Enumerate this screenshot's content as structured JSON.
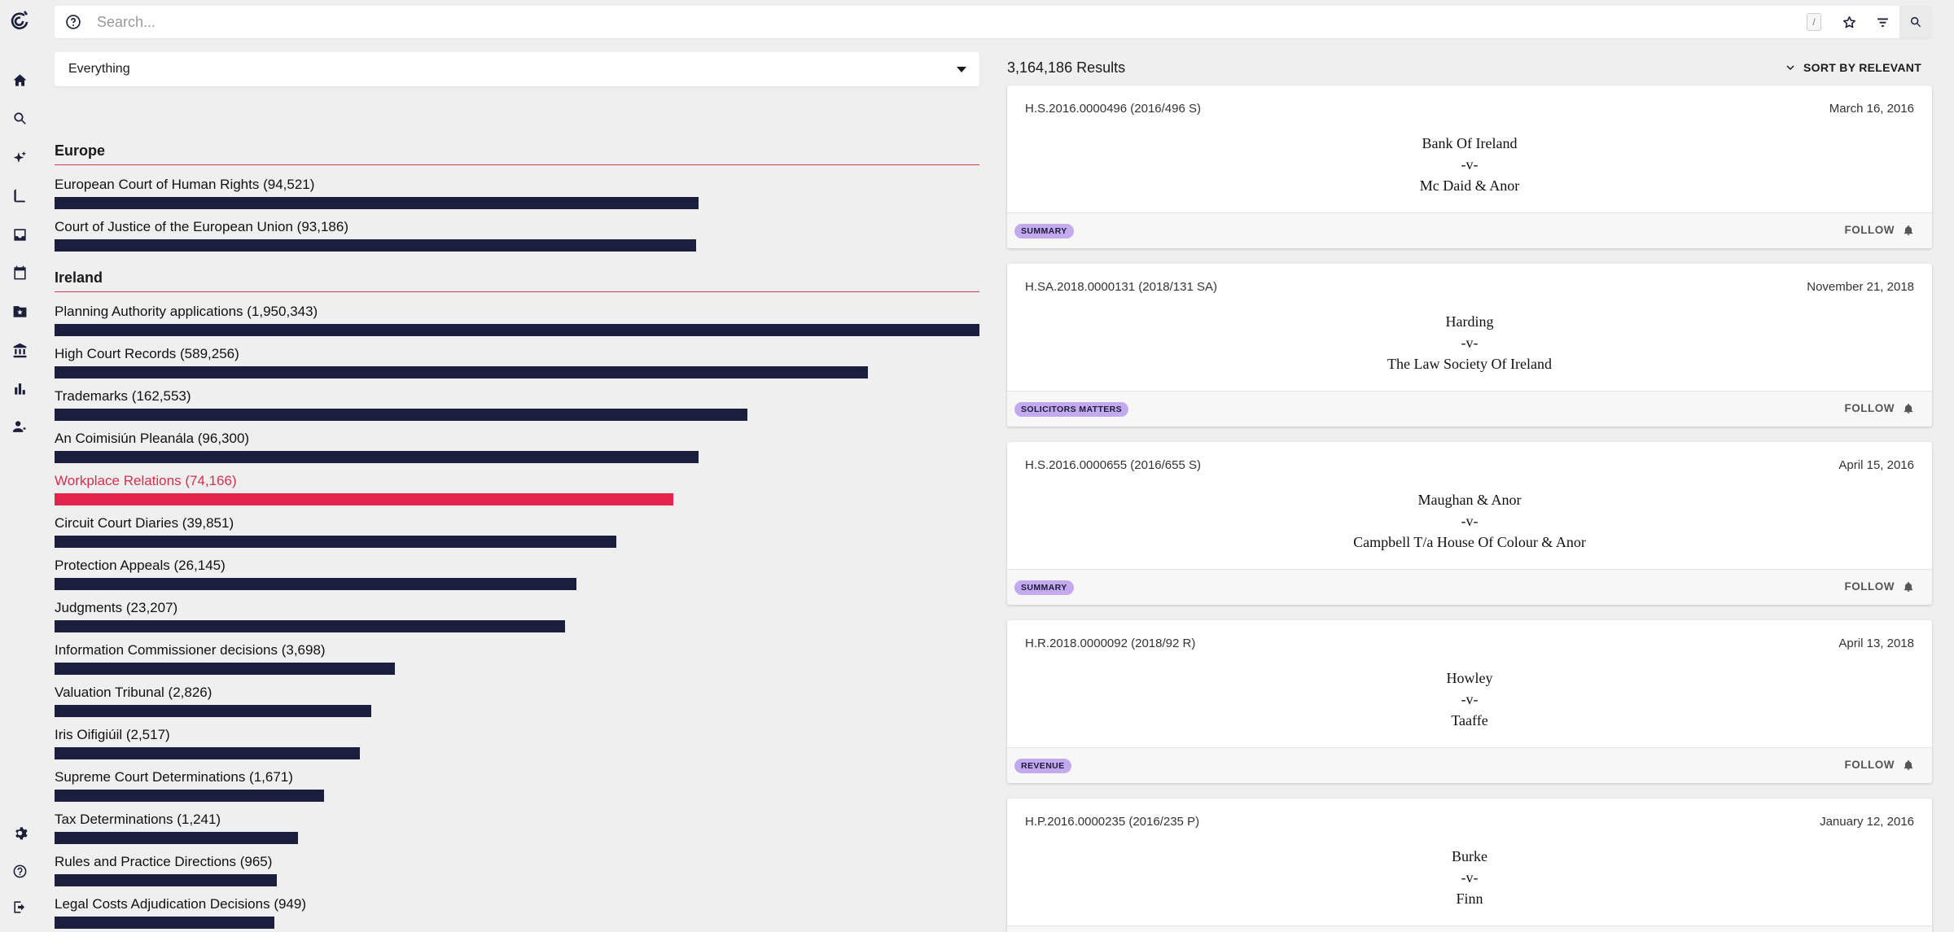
{
  "search": {
    "placeholder": "Search...",
    "shortcut_key": "/"
  },
  "scope": {
    "selected": "Everything"
  },
  "groups": [
    {
      "heading": "Europe"
    },
    {
      "heading": "Ireland"
    }
  ],
  "facets": [
    {
      "label": "European Court of Human Rights (94,521)",
      "fraction": 0.696
    },
    {
      "label": "Court of Justice of the European Union (93,186)",
      "fraction": 0.694
    },
    {
      "label": "Planning Authority applications (1,950,343)",
      "fraction": 1.0
    },
    {
      "label": "High Court Records (589,256)",
      "fraction": 0.879
    },
    {
      "label": "Trademarks (162,553)",
      "fraction": 0.749
    },
    {
      "label": "An Coimisiún Pleanála (96,300)",
      "fraction": 0.696
    },
    {
      "label": "Workplace Relations (74,166)",
      "fraction": 0.669,
      "active": true
    },
    {
      "label": "Circuit Court Diaries (39,851)",
      "fraction": 0.607
    },
    {
      "label": "Protection Appeals (26,145)",
      "fraction": 0.564
    },
    {
      "label": "Judgments (23,207)",
      "fraction": 0.552
    },
    {
      "label": "Information Commissioner decisions (3,698)",
      "fraction": 0.368
    },
    {
      "label": "Valuation Tribunal (2,826)",
      "fraction": 0.342
    },
    {
      "label": "Iris Oifigiúil (2,517)",
      "fraction": 0.33
    },
    {
      "label": "Supreme Court Determinations (1,671)",
      "fraction": 0.291
    },
    {
      "label": "Tax Determinations (1,241)",
      "fraction": 0.263
    },
    {
      "label": "Rules and Practice Directions (965)",
      "fraction": 0.24
    },
    {
      "label": "Legal Costs Adjudication Decisions (949)",
      "fraction": 0.238
    }
  ],
  "results": {
    "count_label": "3,164,186 Results",
    "sort_label": "SORT BY RELEVANT",
    "follow_label": "FOLLOW",
    "items": [
      {
        "ref": "H.S.2016.0000496 (2016/496 S)",
        "date": "March 16, 2016",
        "party1": "Bank Of Ireland",
        "vs": "-v-",
        "party2": "Mc Daid & Anor",
        "badge": "SUMMARY"
      },
      {
        "ref": "H.SA.2018.0000131 (2018/131 SA)",
        "date": "November 21, 2018",
        "party1": "Harding",
        "vs": "-v-",
        "party2": "The Law Society Of Ireland",
        "badge": "SOLICITORS MATTERS"
      },
      {
        "ref": "H.S.2016.0000655 (2016/655 S)",
        "date": "April 15, 2016",
        "party1": "Maughan & Anor",
        "vs": "-v-",
        "party2": "Campbell T/a House Of Colour & Anor",
        "badge": "SUMMARY"
      },
      {
        "ref": "H.R.2018.0000092 (2018/92 R)",
        "date": "April 13, 2018",
        "party1": "Howley",
        "vs": "-v-",
        "party2": "Taaffe",
        "badge": "REVENUE"
      },
      {
        "ref": "H.P.2016.0000235 (2016/235 P)",
        "date": "January 12, 2016",
        "party1": "Burke",
        "vs": "-v-",
        "party2": "Finn",
        "badge": ""
      }
    ]
  },
  "colors": {
    "bar": "#1b1e3d",
    "active": "#e4244a",
    "accent_rule": "#d43a4e",
    "badge": "#c3a9ee"
  }
}
